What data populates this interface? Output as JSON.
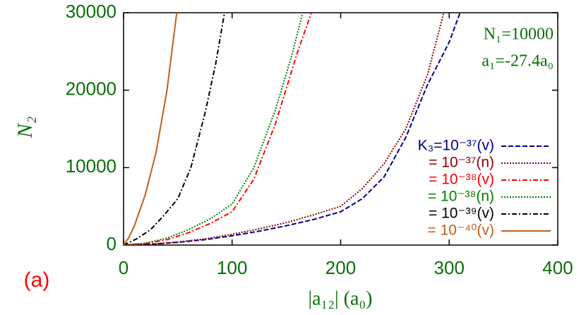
{
  "chart_data": {
    "type": "line",
    "xlabel": "|a₁₂| (a₀)",
    "ylabel": "N₂",
    "panel_label": "(a)",
    "annotations": [
      "N₁=10000",
      "a₁=-27.4a₀"
    ],
    "xlim": [
      0,
      400
    ],
    "xticks": [
      0,
      100,
      200,
      300,
      400
    ],
    "ylim": [
      0,
      30000
    ],
    "yticks": [
      0,
      10000,
      20000,
      30000
    ],
    "legend": "right",
    "series": [
      {
        "name": "K₃=10⁻³⁷(v)",
        "color": "#00008b",
        "style": "dashed",
        "x": [
          0,
          25,
          50,
          75,
          100,
          125,
          150,
          175,
          200,
          220,
          240,
          260,
          280,
          300,
          310
        ],
        "values": [
          0,
          100,
          350,
          700,
          1200,
          1800,
          2500,
          3300,
          4300,
          6000,
          8800,
          13900,
          20700,
          26200,
          30000
        ]
      },
      {
        "name": "= 10⁻³⁷(n)",
        "color": "#8b0000",
        "style": "dotted",
        "x": [
          0,
          25,
          50,
          75,
          100,
          125,
          150,
          175,
          200,
          220,
          240,
          260,
          280,
          295
        ],
        "values": [
          0,
          120,
          400,
          800,
          1400,
          2100,
          2900,
          3900,
          5000,
          7300,
          10500,
          15000,
          22000,
          30000
        ]
      },
      {
        "name": "= 10⁻³⁸(v)",
        "color": "#ff0000",
        "style": "dashdot",
        "x": [
          0,
          20,
          40,
          60,
          80,
          100,
          120,
          140,
          160,
          173
        ],
        "values": [
          0,
          200,
          700,
          1600,
          2800,
          4300,
          8500,
          15700,
          24800,
          30000
        ]
      },
      {
        "name": "= 10⁻³⁸(n)",
        "color": "#008000",
        "style": "dotted",
        "x": [
          0,
          20,
          40,
          60,
          80,
          100,
          120,
          140,
          155,
          165
        ],
        "values": [
          0,
          250,
          900,
          2000,
          3400,
          5300,
          10000,
          17500,
          24500,
          30000
        ]
      },
      {
        "name": "= 10⁻³⁹(v)",
        "color": "#000000",
        "style": "dashdot",
        "x": [
          0,
          12,
          25,
          37,
          50,
          62,
          75,
          85,
          93
        ],
        "values": [
          0,
          800,
          2000,
          3800,
          6000,
          10000,
          17000,
          23500,
          30000
        ]
      },
      {
        "name": "= 10⁻⁴⁰(v)",
        "color": "#c0601a",
        "style": "solid",
        "x": [
          0,
          5,
          10,
          20,
          30,
          40,
          49
        ],
        "values": [
          0,
          1000,
          2500,
          6500,
          12000,
          20000,
          30000
        ]
      }
    ]
  }
}
